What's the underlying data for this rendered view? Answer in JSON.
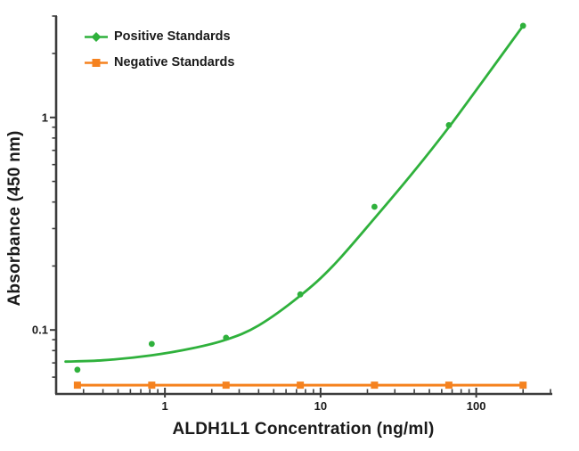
{
  "chart_data": {
    "type": "scatter-line",
    "title": "",
    "xlabel": "ALDH1L1 Concentration (ng/ml)",
    "ylabel": "Absorbance (450 nm)",
    "x_scale": "log",
    "y_scale": "log",
    "xlim": [
      0.2,
      300
    ],
    "ylim": [
      0.05,
      3
    ],
    "grid": "off",
    "legend_position": "top-left",
    "axis_color": "#3c3c3c",
    "text_color": "#1a1a1a",
    "x_major_ticks": [
      1,
      10,
      100
    ],
    "x_tick_labels": [
      "1",
      "10",
      "100"
    ],
    "x_minor_ticks": [
      0.3,
      0.4,
      0.5,
      0.6,
      0.7,
      0.8,
      0.9,
      2,
      3,
      4,
      5,
      6,
      7,
      8,
      9,
      20,
      30,
      40,
      50,
      60,
      70,
      80,
      90,
      200,
      300
    ],
    "y_major_ticks": [
      0.1,
      1
    ],
    "y_tick_labels": [
      "0.1",
      "1"
    ],
    "y_minor_ticks": [
      0.06,
      0.07,
      0.08,
      0.09,
      0.2,
      0.3,
      0.4,
      0.5,
      0.6,
      0.7,
      0.8,
      0.9,
      2,
      3
    ],
    "series": [
      {
        "name": "Positive Standards",
        "color": "#2FB13C",
        "marker": "circle",
        "legend_marker": "diamond",
        "x": [
          0.274,
          0.823,
          2.47,
          7.41,
          22.2,
          66.7,
          200
        ],
        "y": [
          0.065,
          0.086,
          0.092,
          0.147,
          0.38,
          0.92,
          2.7
        ],
        "fit_curve": {
          "x": [
            0.23,
            0.4,
            0.823,
            1.5,
            2.47,
            4,
            7.41,
            12,
            22.2,
            40,
            66.7,
            110,
            200
          ],
          "y": [
            0.071,
            0.072,
            0.076,
            0.082,
            0.09,
            0.105,
            0.145,
            0.2,
            0.335,
            0.56,
            0.9,
            1.48,
            2.7
          ]
        }
      },
      {
        "name": "Negative Standards",
        "color": "#F5821F",
        "marker": "square",
        "legend_marker": "square",
        "x": [
          0.274,
          0.823,
          2.47,
          7.41,
          22.2,
          66.7,
          200
        ],
        "y": [
          0.055,
          0.055,
          0.055,
          0.055,
          0.055,
          0.055,
          0.055
        ]
      }
    ]
  }
}
